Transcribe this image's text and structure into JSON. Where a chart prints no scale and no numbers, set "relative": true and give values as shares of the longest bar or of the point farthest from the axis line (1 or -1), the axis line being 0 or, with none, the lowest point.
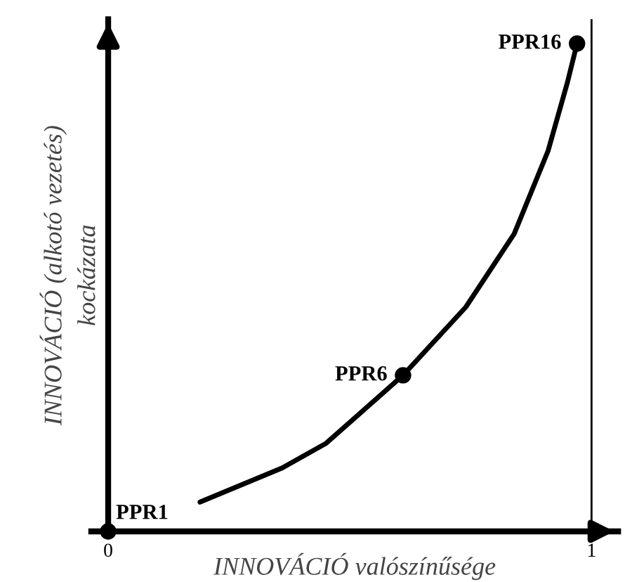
{
  "chart_data": {
    "type": "line",
    "relative": true,
    "xlabel": "INNOVÁCIÓ valószínűsége",
    "ylabel": "INNOVÁCIÓ (alkotó vezetés)\nkockázata",
    "xlim": [
      -0.035,
      1.055
    ],
    "xticks": [
      0,
      1
    ],
    "series": [
      {
        "color": "#000000",
        "marker": "none",
        "x": [
          0.19,
          0.36,
          0.45,
          0.61,
          0.74,
          0.84,
          0.91,
          0.95,
          0.97
        ],
        "values": [
          0.06,
          0.13,
          0.18,
          0.32,
          0.46,
          0.61,
          0.78,
          0.92,
          1.0
        ]
      },
      {
        "type": "scatter",
        "color": "#000000",
        "marker": "circle",
        "x": [
          0,
          0.61,
          0.97
        ],
        "values": [
          0,
          0.32,
          1.0
        ]
      }
    ],
    "annotations": [
      {
        "text": "PPR1",
        "x": 0,
        "y": 0
      },
      {
        "text": "PPR6",
        "x": 0.61,
        "y": 0.32
      },
      {
        "text": "PPR16",
        "x": 0.97,
        "y": 1.0
      }
    ],
    "ref_lines": [
      {
        "axis": "x",
        "value": 1,
        "color": "#000000"
      }
    ],
    "grid": false,
    "legend": false
  }
}
